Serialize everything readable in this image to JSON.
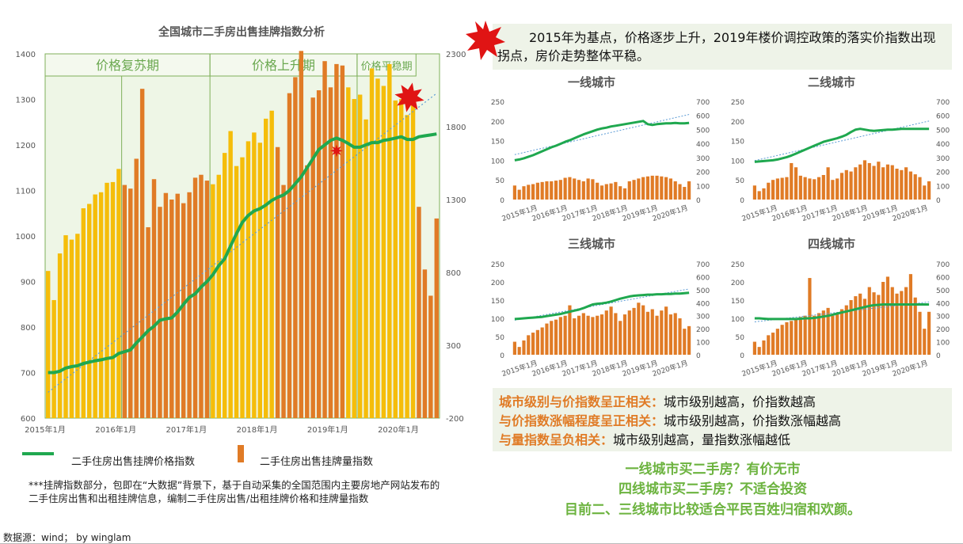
{
  "main_title": "全国城市二手房出售挂牌指数分析",
  "callout_text": "2015年为基点，价格逐步上升，2019年楼价调控政策的落实价指数出现拐点，房价走势整体平稳。",
  "legend": {
    "price": "二手住房出售挂牌价格指数",
    "volume": "二手住房出售挂牌量指数"
  },
  "note": "***挂牌指数部分，包即在“大数据”背景下，基于自动采集的全国范围内主要房地产网站发布的二手住房出售和出租挂牌信息，编制二手住房出售/出租挂牌价格和挂牌量指数",
  "source": "数据源：wind；    by winglam",
  "summary": [
    {
      "highlight": "城市级别与价指数呈正相关：",
      "rest": "城市级别越高，价指数越高"
    },
    {
      "highlight": "与价指数涨幅程度呈正相关：",
      "rest": "城市级别越高，价指数涨幅越高"
    },
    {
      "highlight": "与量指数呈负相关：",
      "rest": "城市级别越高，量指数涨幅越低"
    }
  ],
  "conclusions": [
    "一线城市买二手房？有价无市",
    "四线城市买二手房？不适合投资",
    "目前二、三线城市比较适合平民百姓归宿和欢颜。"
  ],
  "colors": {
    "price_line": "#1fa84f",
    "bar_yellow": "#f5bd0a",
    "bar_orange": "#e07b26",
    "trend": "#5b9bd5",
    "phase_border": "#7fb05a",
    "phase_text": "#6aa84f",
    "phase_fill": "#eef6e6"
  },
  "chart_data": [
    {
      "type": "bar+line",
      "title": "全国城市二手房出售挂牌指数分析",
      "x_ticks": [
        "2015年1月",
        "2016年1月",
        "2017年1月",
        "2018年1月",
        "2019年1月",
        "2020年1月"
      ],
      "y_left_ticks": [
        600,
        700,
        800,
        900,
        1000,
        1100,
        1200,
        1300,
        1400
      ],
      "y_right_ticks": [
        -200,
        300,
        800,
        1300,
        1800,
        2300
      ],
      "ylim_left": [
        600,
        1400
      ],
      "ylim_right": [
        -200,
        2300
      ],
      "phases": [
        {
          "label": "价格复苏期",
          "start": 0,
          "end": 28
        },
        {
          "label": "价格上升期",
          "start": 28,
          "end": 53
        },
        {
          "label": "价格平稳期",
          "start": 53,
          "end": 63
        }
      ],
      "series": [
        {
          "name": "二手住房出售挂牌价格指数",
          "axis": "left",
          "type": "line",
          "values": [
            700,
            700,
            703,
            710,
            713,
            715,
            720,
            723,
            726,
            728,
            731,
            733,
            742,
            746,
            750,
            765,
            778,
            792,
            802,
            815,
            818,
            820,
            833,
            850,
            865,
            873,
            888,
            900,
            915,
            935,
            950,
            978,
            1005,
            1030,
            1045,
            1055,
            1060,
            1068,
            1078,
            1085,
            1090,
            1100,
            1115,
            1130,
            1150,
            1170,
            1190,
            1200,
            1210,
            1215,
            1210,
            1203,
            1195,
            1195,
            1200,
            1205,
            1205,
            1210,
            1212,
            1215,
            1218,
            1212,
            1212,
            1218,
            1220,
            1222,
            1224
          ]
        },
        {
          "name": "二手住房出售挂牌量指数",
          "axis": "right",
          "type": "bar",
          "values": [
            810,
            610,
            930,
            1055,
            1025,
            1065,
            1240,
            1270,
            1335,
            1350,
            1415,
            1420,
            1510,
            1400,
            1375,
            1580,
            2060,
            1110,
            1440,
            1250,
            1345,
            1300,
            1340,
            1275,
            1350,
            1450,
            1470,
            1430,
            1405,
            1470,
            1620,
            1770,
            1530,
            1590,
            1700,
            1760,
            1690,
            1855,
            1910,
            1660,
            1400,
            2030,
            2140,
            2320,
            1535,
            2000,
            2050,
            2250,
            2070,
            2230,
            2220,
            2070,
            1990,
            2020,
            1850,
            2200,
            2130,
            2080,
            2230,
            1980,
            1990,
            1880,
            1960,
            1250,
            820,
            640,
            1170
          ]
        }
      ]
    },
    {
      "type": "bar+line",
      "title": "一线城市",
      "x_ticks": [
        "2015年1月",
        "2016年1月",
        "2017年1月",
        "2018年1月",
        "2019年1月",
        "2020年1月"
      ],
      "y_left_ticks": [
        0,
        50,
        100,
        150,
        200,
        250
      ],
      "y_right_ticks": [
        0,
        100,
        200,
        300,
        400,
        500,
        600,
        700
      ],
      "ylim_left": [
        0,
        250
      ],
      "ylim_right": [
        0,
        700
      ],
      "series": [
        {
          "name": "价格指数",
          "values": [
            100,
            102,
            105,
            109,
            113,
            118,
            123,
            128,
            133,
            137,
            142,
            147,
            151,
            156,
            161,
            166,
            170,
            174,
            178,
            181,
            183,
            186,
            188,
            190,
            192,
            194,
            196,
            198,
            200,
            192,
            190,
            192,
            193,
            194,
            194,
            195,
            194,
            194,
            195
          ]
        },
        {
          "name": "量指数",
          "values": [
            100,
            70,
            95,
            105,
            110,
            120,
            125,
            130,
            130,
            135,
            140,
            155,
            160,
            150,
            140,
            130,
            150,
            145,
            120,
            100,
            110,
            115,
            125,
            95,
            80,
            130,
            140,
            150,
            160,
            165,
            170,
            170,
            165,
            160,
            150,
            130,
            110,
            90,
            130
          ]
        }
      ]
    },
    {
      "type": "bar+line",
      "title": "二线城市",
      "x_ticks": [
        "2015年1月",
        "2016年1月",
        "2017年1月",
        "2018年1月",
        "2019年1月",
        "2020年1月"
      ],
      "y_left_ticks": [
        0,
        50,
        100,
        150,
        200,
        250
      ],
      "y_right_ticks": [
        0,
        100,
        200,
        300,
        400,
        500,
        600,
        700
      ],
      "ylim_left": [
        0,
        250
      ],
      "ylim_right": [
        0,
        700
      ],
      "series": [
        {
          "name": "价格指数",
          "values": [
            96,
            97,
            98,
            99,
            100,
            102,
            105,
            108,
            112,
            117,
            122,
            127,
            132,
            137,
            142,
            147,
            150,
            153,
            156,
            160,
            165,
            172,
            178,
            180,
            178,
            176,
            175,
            176,
            177,
            178,
            178,
            179,
            180,
            180,
            180,
            180,
            180,
            180,
            180
          ]
        },
        {
          "name": "量指数",
          "values": [
            100,
            60,
            80,
            120,
            140,
            150,
            155,
            160,
            260,
            230,
            170,
            160,
            150,
            145,
            160,
            175,
            230,
            140,
            150,
            190,
            210,
            200,
            230,
            250,
            280,
            260,
            240,
            270,
            230,
            250,
            245,
            220,
            210,
            230,
            200,
            180,
            160,
            100,
            130
          ]
        }
      ]
    },
    {
      "type": "bar+line",
      "title": "三线城市",
      "x_ticks": [
        "2015年1月",
        "2016年1月",
        "2017年1月",
        "2018年1月",
        "2019年1月",
        "2020年1月"
      ],
      "y_left_ticks": [
        0,
        50,
        100,
        150,
        200,
        250
      ],
      "y_right_ticks": [
        0,
        100,
        200,
        300,
        400,
        500,
        600,
        700
      ],
      "ylim_left": [
        0,
        250
      ],
      "ylim_right": [
        0,
        700
      ],
      "series": [
        {
          "name": "价格指数",
          "values": [
            98,
            99,
            100,
            101,
            102,
            103,
            104,
            106,
            108,
            110,
            112,
            115,
            118,
            121,
            124,
            128,
            133,
            138,
            140,
            141,
            143,
            146,
            150,
            154,
            157,
            160,
            162,
            163,
            164,
            165,
            165,
            166,
            166,
            167,
            167,
            168,
            168,
            169,
            170
          ]
        },
        {
          "name": "量指数",
          "values": [
            100,
            60,
            110,
            150,
            170,
            190,
            210,
            240,
            260,
            270,
            290,
            300,
            380,
            280,
            300,
            320,
            300,
            290,
            300,
            310,
            340,
            370,
            320,
            260,
            310,
            340,
            360,
            400,
            380,
            330,
            350,
            300,
            340,
            370,
            310,
            320,
            280,
            200,
            220
          ]
        }
      ]
    },
    {
      "type": "bar+line",
      "title": "四线城市",
      "x_ticks": [
        "2015年1月",
        "2016年1月",
        "2017年1月",
        "2018年1月",
        "2019年1月",
        "2020年1月"
      ],
      "y_left_ticks": [
        0,
        50,
        100,
        150,
        200,
        250
      ],
      "y_right_ticks": [
        0,
        100,
        200,
        300,
        400,
        500,
        600,
        700
      ],
      "ylim_left": [
        0,
        250
      ],
      "ylim_right": [
        0,
        700
      ],
      "series": [
        {
          "name": "价格指数",
          "values": [
            100,
            100,
            99,
            98,
            98,
            98,
            98,
            98,
            98,
            98,
            99,
            100,
            100,
            101,
            103,
            105,
            107,
            110,
            113,
            116,
            119,
            122,
            125,
            128,
            131,
            134,
            136,
            137,
            138,
            138,
            138,
            138,
            138,
            138,
            138,
            138,
            138,
            138,
            138
          ]
        },
        {
          "name": "量指数",
          "values": [
            100,
            60,
            110,
            150,
            170,
            200,
            230,
            250,
            260,
            270,
            290,
            300,
            590,
            300,
            320,
            340,
            360,
            300,
            310,
            350,
            380,
            420,
            450,
            470,
            430,
            520,
            480,
            460,
            560,
            600,
            520,
            470,
            490,
            520,
            620,
            440,
            330,
            200,
            330
          ]
        }
      ]
    }
  ]
}
